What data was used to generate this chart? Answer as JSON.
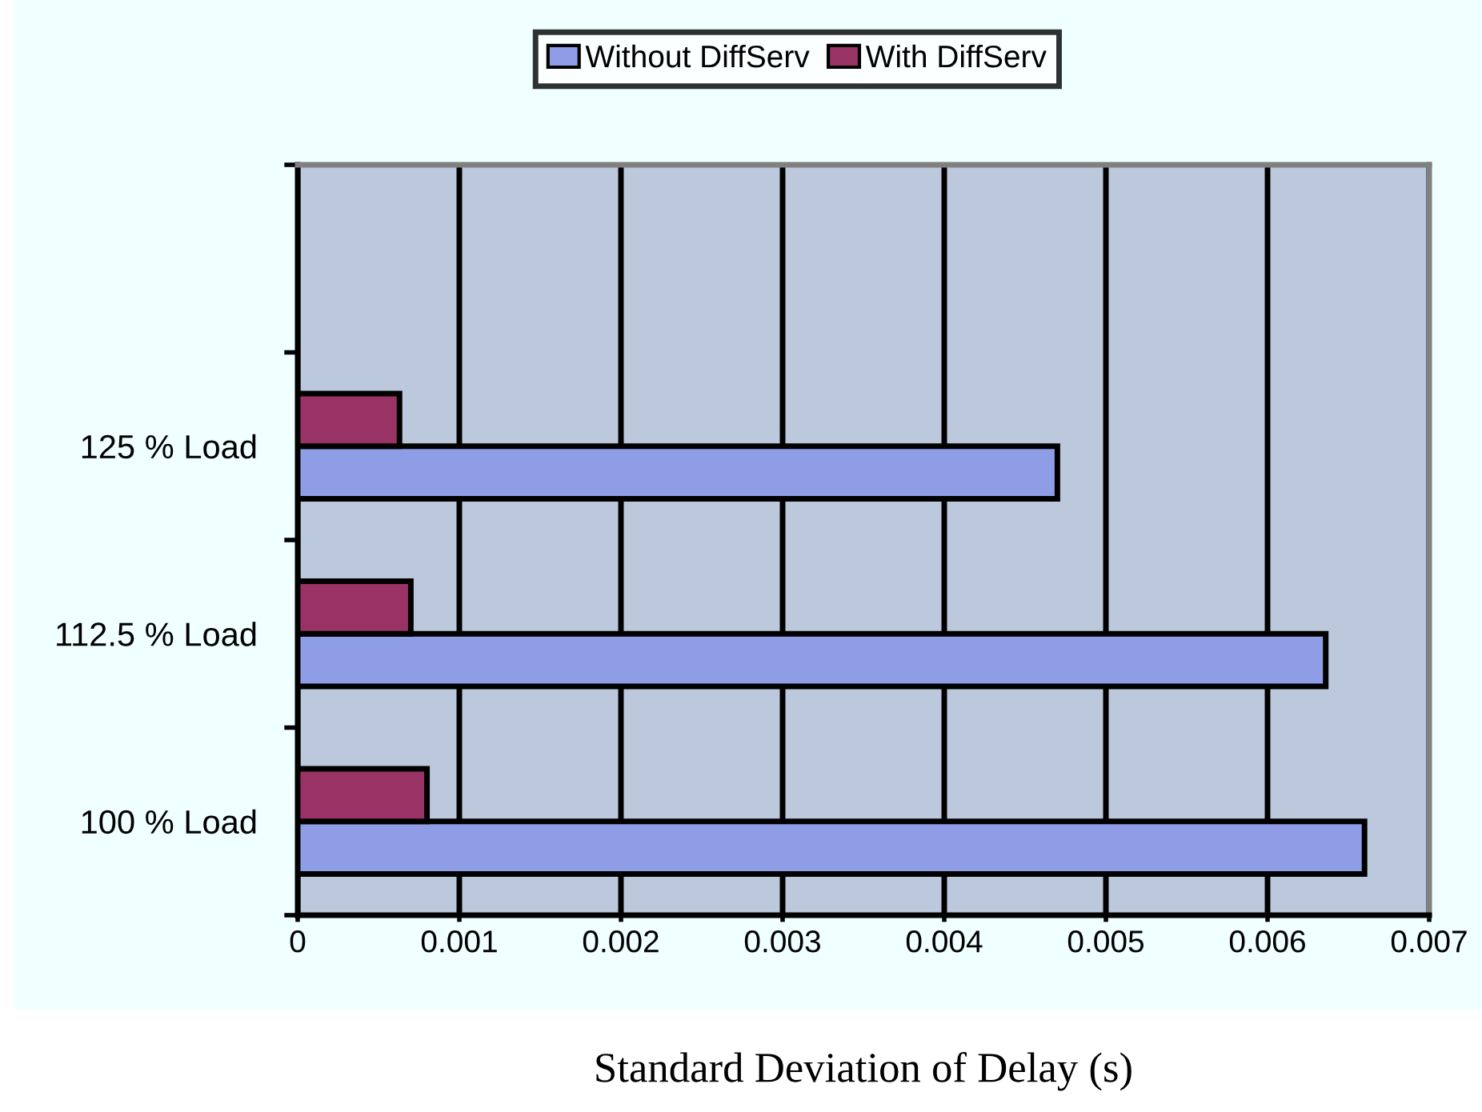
{
  "chart_data": {
    "type": "bar",
    "orientation": "horizontal",
    "categories": [
      null,
      "125 % Load",
      "112.5 % Load",
      "100 % Load"
    ],
    "series": [
      {
        "name": "Without DiffServ",
        "color": "#8f9de6",
        "values": [
          null,
          0.0047,
          0.00636,
          0.0066
        ]
      },
      {
        "name": "With DiffServ",
        "color": "#993366",
        "values": [
          null,
          0.00063,
          0.0007,
          0.0008
        ]
      }
    ],
    "xlabel": "Standard Deviation of Delay (s)",
    "xlim": [
      0,
      0.007
    ],
    "xticks": [
      0,
      0.001,
      0.002,
      0.003,
      0.004,
      0.005,
      0.006,
      0.007
    ],
    "grid": "x",
    "legend": "top"
  }
}
